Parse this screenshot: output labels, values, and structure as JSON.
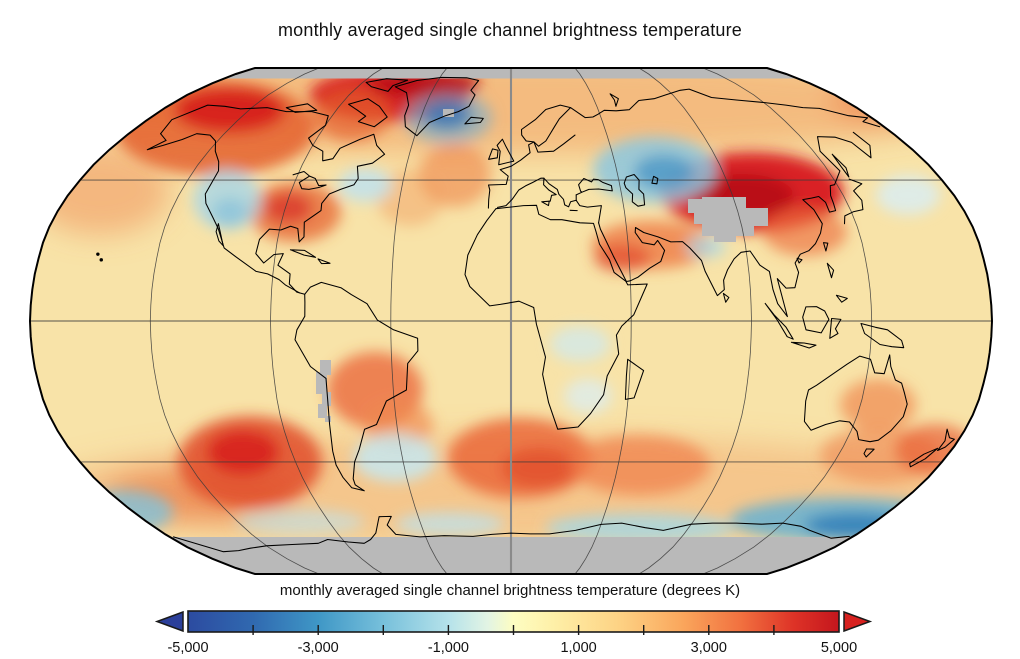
{
  "title": "monthly averaged single channel brightness temperature",
  "colorbar": {
    "label": "monthly averaged single channel brightness temperature (degrees K)",
    "units": "degrees K",
    "min": -5000,
    "max": 5000,
    "minor_tick_interval": 1000,
    "tick_values": [
      -5000,
      -3000,
      -1000,
      1000,
      3000,
      5000
    ],
    "tick_labels": [
      "-5,000",
      "-3,000",
      "-1,000",
      "1,000",
      "3,000",
      "5,000"
    ],
    "under_arrow_color": "#2b3f9a",
    "over_arrow_color": "#d7211f",
    "frame_color": "#1a1a1a",
    "gradient_stops": [
      [
        0.0,
        "#2c4ba0"
      ],
      [
        0.1,
        "#3069b0"
      ],
      [
        0.2,
        "#3f97c6"
      ],
      [
        0.3,
        "#77c0db"
      ],
      [
        0.4,
        "#b5e2ea"
      ],
      [
        0.46,
        "#e2f4e4"
      ],
      [
        0.5,
        "#fdfdc2"
      ],
      [
        0.56,
        "#fef0a8"
      ],
      [
        0.66,
        "#fdd385"
      ],
      [
        0.76,
        "#faa65c"
      ],
      [
        0.85,
        "#f1703f"
      ],
      [
        0.93,
        "#de3327"
      ],
      [
        1.0,
        "#c4161d"
      ]
    ]
  },
  "map": {
    "base_color": "#f8e3a8",
    "missing_data_color": "#b9b9b9",
    "coastline_color": "#000000",
    "graticule_color": "#3a3a3a",
    "central_meridian_color": "#8a8a8a",
    "outline_color": "#000000",
    "graticule": {
      "parallels_deg": [
        -45,
        0,
        45
      ],
      "meridians_deg": [
        -135,
        -90,
        -45,
        0,
        45,
        90,
        135
      ]
    },
    "no_data_regions": [
      "north polar cap",
      "Antarctica",
      "Tibetan Plateau / Himalaya",
      "Andes strip",
      "central Greenland cell"
    ]
  },
  "chart_data": {
    "type": "heatmap",
    "title": "monthly averaged single channel brightness temperature",
    "colorbar_label": "monthly averaged single channel brightness temperature (degrees K)",
    "scale_range": [
      -5000,
      5000
    ],
    "scale_tick_labels": [
      "-5,000",
      "-3,000",
      "-1,000",
      "1,000",
      "3,000",
      "5,000"
    ],
    "legend_position": "bottom",
    "positive_anomaly_regions": [
      "Alaska and northwest Canada",
      "Canadian Arctic and northern Greenland",
      "southeastern United States",
      "Mongolia and northeastern China",
      "Middle East / Persian Gulf",
      "southeast Pacific west of Chile",
      "South Atlantic",
      "southern Indian Ocean",
      "eastern Australia",
      "central South America (Paraguay / Brazil)"
    ],
    "negative_anomaly_regions": [
      "central Greenland",
      "western United States (Great Basin)",
      "Kazakhstan / western Siberia",
      "northern India",
      "ocean east of Argentina",
      "Southern Ocean fringe near Antarctica",
      "northwest Pacific east of Japan"
    ],
    "missing_data_regions": [
      "north polar cap",
      "Antarctica",
      "Tibetan Plateau",
      "Andes",
      "central Greenland cell"
    ]
  }
}
